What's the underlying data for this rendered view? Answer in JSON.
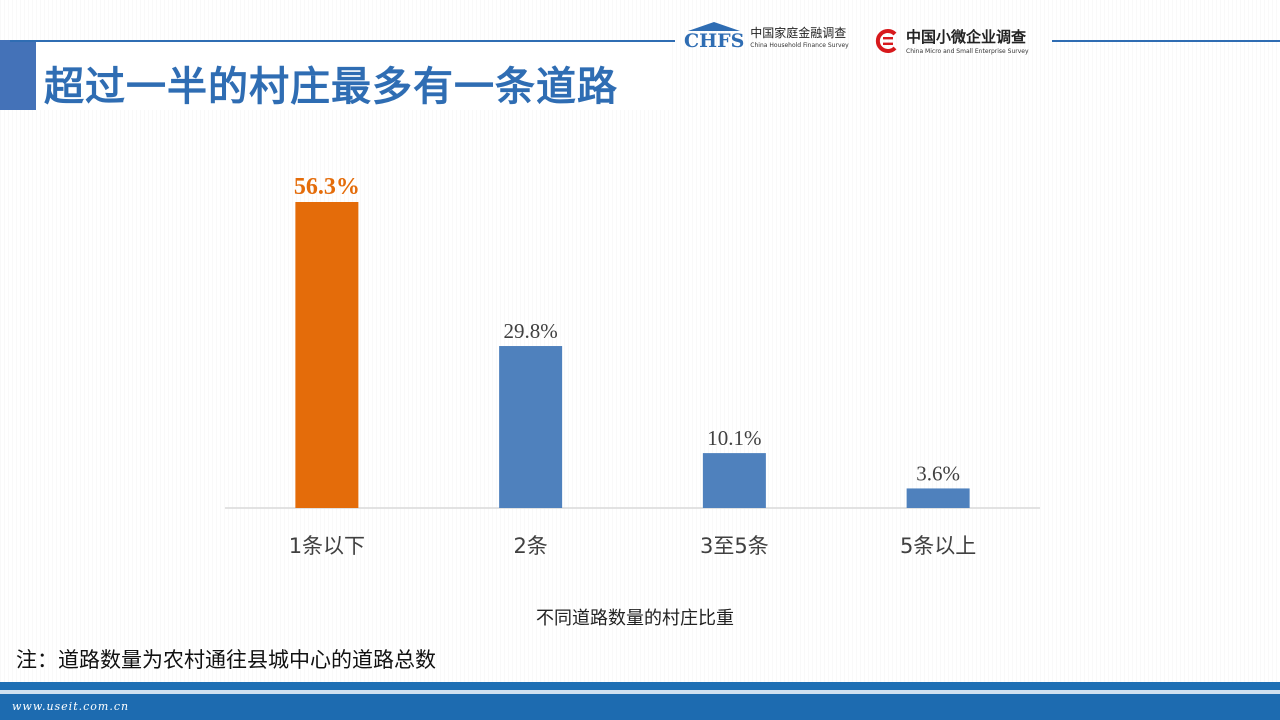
{
  "slide": {
    "title": "超过一半的村庄最多有一条道路",
    "note": "注：道路数量为农村通往县城中心的道路总数"
  },
  "logos": {
    "chfs": {
      "mark": "CHFS",
      "cn": "中国家庭金融调查",
      "en": "China Household Finance Survey"
    },
    "smes": {
      "cn": "中国小微企业调查",
      "en": "China Micro and Small Enterprise Survey"
    }
  },
  "footer": {
    "watermark": "www.useit.com.cn"
  },
  "colors": {
    "title": "#2f6db3",
    "highlight_bar": "#e46c0a",
    "bar": "#4f81bd",
    "footer": "#1d6bb0"
  },
  "chart_data": {
    "type": "bar",
    "categories": [
      "1条以下",
      "2条",
      "3至5条",
      "5条以上"
    ],
    "values": [
      56.3,
      29.8,
      10.1,
      3.6
    ],
    "value_labels": [
      "56.3%",
      "29.8%",
      "10.1%",
      "3.6%"
    ],
    "highlight_index": 0,
    "xlabel": "不同道路数量的村庄比重",
    "ylabel": "",
    "ylim": [
      0,
      56.3
    ],
    "grid": false,
    "legend": "none"
  }
}
